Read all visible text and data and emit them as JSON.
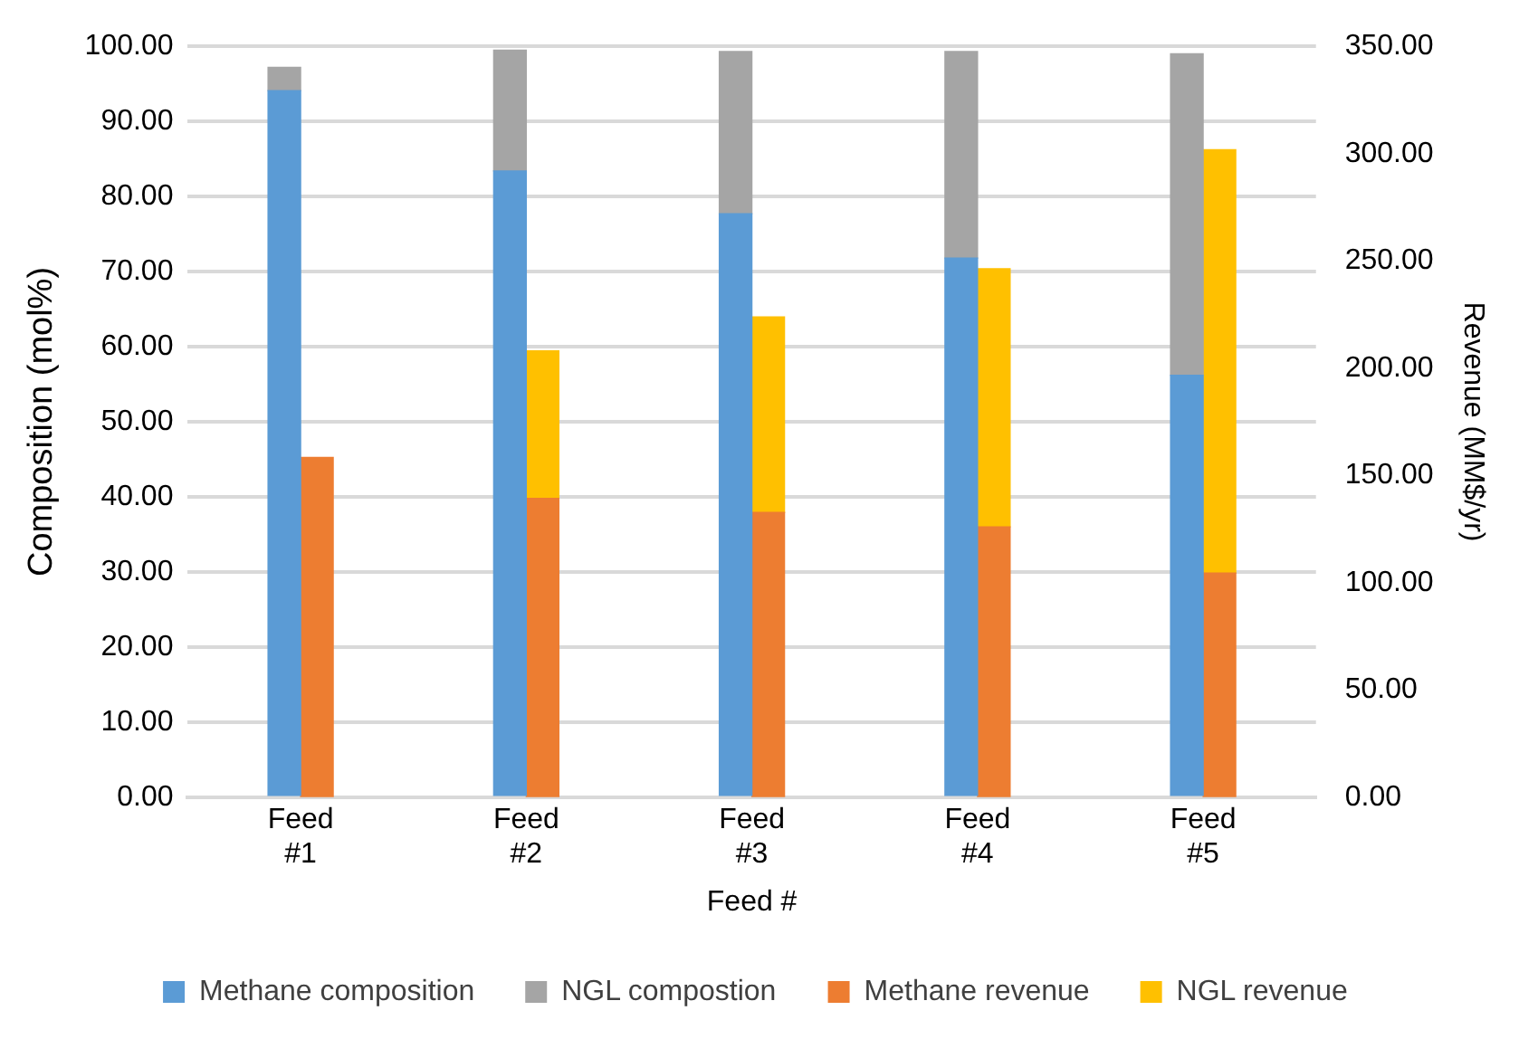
{
  "chart_data": {
    "type": "bar",
    "stacked": true,
    "xlabel": "Feed #",
    "ylabel": "Composition (mol%)",
    "y2label": "Revenue (MM$/yr)",
    "categories": [
      "Feed #1",
      "Feed #2",
      "Feed #3",
      "Feed #4",
      "Feed #5"
    ],
    "series": [
      {
        "name": "Methane composition",
        "color": "#5b9bd5",
        "values": [
          94.1,
          83.4,
          77.7,
          71.8,
          56.2
        ]
      },
      {
        "name": "NGL compostion",
        "color": "#a5a5a5",
        "values": [
          3.1,
          16.1,
          21.6,
          27.5,
          42.8
        ]
      },
      {
        "name": "Methane revenue",
        "color": "#ed7d31",
        "axis": "y2",
        "values": [
          158.4,
          139.3,
          132.7,
          126.0,
          104.5
        ]
      },
      {
        "name": "NGL revenue",
        "color": "#ffc000",
        "axis": "y2",
        "values": [
          null,
          68.8,
          91.2,
          120.3,
          197.3
        ]
      }
    ],
    "ylim": [
      0,
      100
    ],
    "yticks": [
      {
        "value": 0,
        "label": "0.00"
      },
      {
        "value": 10,
        "label": "10.00"
      },
      {
        "value": 20,
        "label": "20.00"
      },
      {
        "value": 30,
        "label": "30.00"
      },
      {
        "value": 40,
        "label": "40.00"
      },
      {
        "value": 50,
        "label": "50.00"
      },
      {
        "value": 60,
        "label": "60.00"
      },
      {
        "value": 70,
        "label": "70.00"
      },
      {
        "value": 80,
        "label": "80.00"
      },
      {
        "value": 90,
        "label": "90.00"
      },
      {
        "value": 100,
        "label": "100.00"
      }
    ],
    "y2lim": [
      0,
      350
    ],
    "y2ticks": [
      {
        "value": 0,
        "label": "0.00"
      },
      {
        "value": 50,
        "label": "50.00"
      },
      {
        "value": 100,
        "label": "100.00"
      },
      {
        "value": 150,
        "label": "150.00"
      },
      {
        "value": 200,
        "label": "200.00"
      },
      {
        "value": 250,
        "label": "250.00"
      },
      {
        "value": 300,
        "label": "300.00"
      },
      {
        "value": 350,
        "label": "350.00"
      }
    ],
    "grid": "y",
    "legend": "bottom"
  }
}
